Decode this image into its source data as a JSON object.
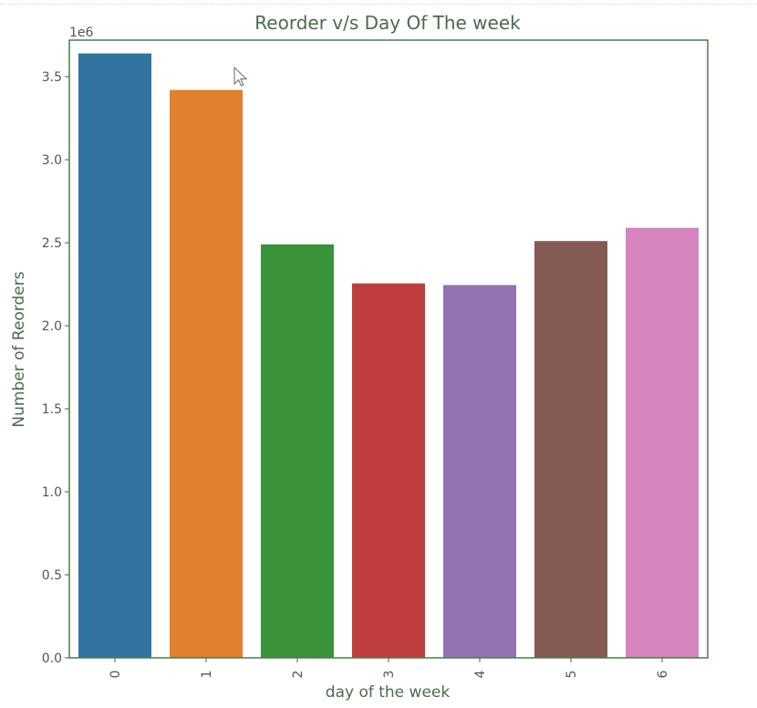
{
  "chart_data": {
    "type": "bar",
    "title": "Reorder v/s Day Of The week",
    "xlabel": "day of the week",
    "ylabel": "Number of Reorders",
    "y_offset_label": "1e6",
    "categories": [
      "0",
      "1",
      "2",
      "3",
      "4",
      "5",
      "6"
    ],
    "values": [
      3.64,
      3.42,
      2.49,
      2.255,
      2.245,
      2.51,
      2.59
    ],
    "value_scale": 1000000,
    "colors": [
      "#3274a1",
      "#e1812c",
      "#3a923a",
      "#c03d3e",
      "#9372b2",
      "#845b53",
      "#d584bd"
    ],
    "yticks": [
      "0.0",
      "0.5",
      "1.0",
      "1.5",
      "2.0",
      "2.5",
      "3.0",
      "3.5"
    ],
    "ylim": [
      0,
      3.72
    ],
    "grid": false,
    "frame_color": "#4d7a4d"
  }
}
